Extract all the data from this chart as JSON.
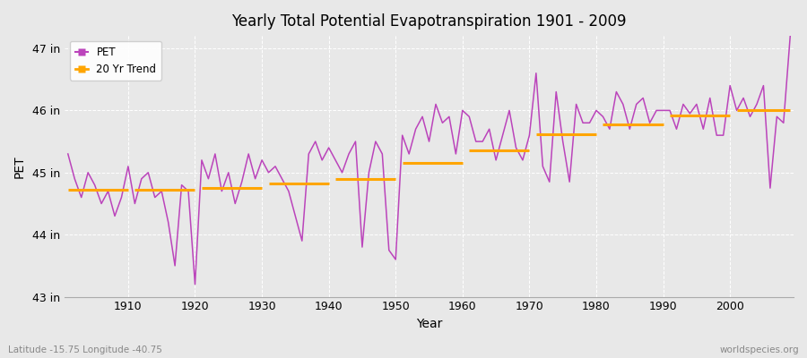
{
  "title": "Yearly Total Potential Evapotranspiration 1901 - 2009",
  "ylabel": "PET",
  "xlabel": "Year",
  "subtitle_left": "Latitude -15.75 Longitude -40.75",
  "subtitle_right": "worldspecies.org",
  "pet_color": "#bb44bb",
  "trend_color": "#ffa500",
  "fig_bg": "#e8e8e8",
  "plot_bg": "#e8e8e8",
  "years": [
    1901,
    1902,
    1903,
    1904,
    1905,
    1906,
    1907,
    1908,
    1909,
    1910,
    1911,
    1912,
    1913,
    1914,
    1915,
    1916,
    1917,
    1918,
    1919,
    1920,
    1921,
    1922,
    1923,
    1924,
    1925,
    1926,
    1927,
    1928,
    1929,
    1930,
    1931,
    1932,
    1933,
    1934,
    1935,
    1936,
    1937,
    1938,
    1939,
    1940,
    1941,
    1942,
    1943,
    1944,
    1945,
    1946,
    1947,
    1948,
    1949,
    1950,
    1951,
    1952,
    1953,
    1954,
    1955,
    1956,
    1957,
    1958,
    1959,
    1960,
    1961,
    1962,
    1963,
    1964,
    1965,
    1966,
    1967,
    1968,
    1969,
    1970,
    1971,
    1972,
    1973,
    1974,
    1975,
    1976,
    1977,
    1978,
    1979,
    1980,
    1981,
    1982,
    1983,
    1984,
    1985,
    1986,
    1987,
    1988,
    1989,
    1990,
    1991,
    1992,
    1993,
    1994,
    1995,
    1996,
    1997,
    1998,
    1999,
    2000,
    2001,
    2002,
    2003,
    2004,
    2005,
    2006,
    2007,
    2008,
    2009
  ],
  "pet_values": [
    45.3,
    44.9,
    44.6,
    45.0,
    44.8,
    44.5,
    44.7,
    44.3,
    44.6,
    45.1,
    44.5,
    44.9,
    45.0,
    44.6,
    44.7,
    44.2,
    43.5,
    44.8,
    44.7,
    43.2,
    45.2,
    44.9,
    45.3,
    44.7,
    45.0,
    44.5,
    44.85,
    45.3,
    44.9,
    45.2,
    45.0,
    45.1,
    44.9,
    44.7,
    44.3,
    43.9,
    45.3,
    45.5,
    45.2,
    45.4,
    45.2,
    45.0,
    45.3,
    45.5,
    43.8,
    45.0,
    45.5,
    45.3,
    43.75,
    43.6,
    45.6,
    45.3,
    45.7,
    45.9,
    45.5,
    46.1,
    45.8,
    45.9,
    45.3,
    46.0,
    45.9,
    45.5,
    45.5,
    45.7,
    45.2,
    45.6,
    46.0,
    45.4,
    45.2,
    45.6,
    46.6,
    45.1,
    44.85,
    46.3,
    45.5,
    44.85,
    46.1,
    45.8,
    45.8,
    46.0,
    45.9,
    45.7,
    46.3,
    46.1,
    45.7,
    46.1,
    46.2,
    45.8,
    46.0,
    46.0,
    46.0,
    45.7,
    46.1,
    45.95,
    46.1,
    45.7,
    46.2,
    45.6,
    45.6,
    46.4,
    46.0,
    46.2,
    45.9,
    46.1,
    46.4,
    44.75,
    45.9,
    45.8,
    47.2
  ],
  "trend_years_start": [
    1901,
    1911,
    1921,
    1931,
    1941,
    1951,
    1961,
    1971,
    1981,
    1991,
    2001
  ],
  "trend_years_end": [
    1910,
    1920,
    1930,
    1940,
    1950,
    1960,
    1970,
    1980,
    1990,
    2000,
    2009
  ],
  "trend_vals": [
    44.72,
    44.72,
    44.75,
    44.82,
    44.9,
    45.15,
    45.35,
    45.62,
    45.78,
    45.92,
    46.0
  ],
  "ylim": [
    43.0,
    47.2
  ],
  "yticks": [
    43,
    44,
    45,
    46,
    47
  ],
  "ytick_labels": [
    "43 in",
    "44 in",
    "45 in",
    "46 in",
    "47 in"
  ],
  "xticks": [
    1910,
    1920,
    1930,
    1940,
    1950,
    1960,
    1970,
    1980,
    1990,
    2000
  ],
  "xlim": [
    1900.5,
    2009.5
  ]
}
